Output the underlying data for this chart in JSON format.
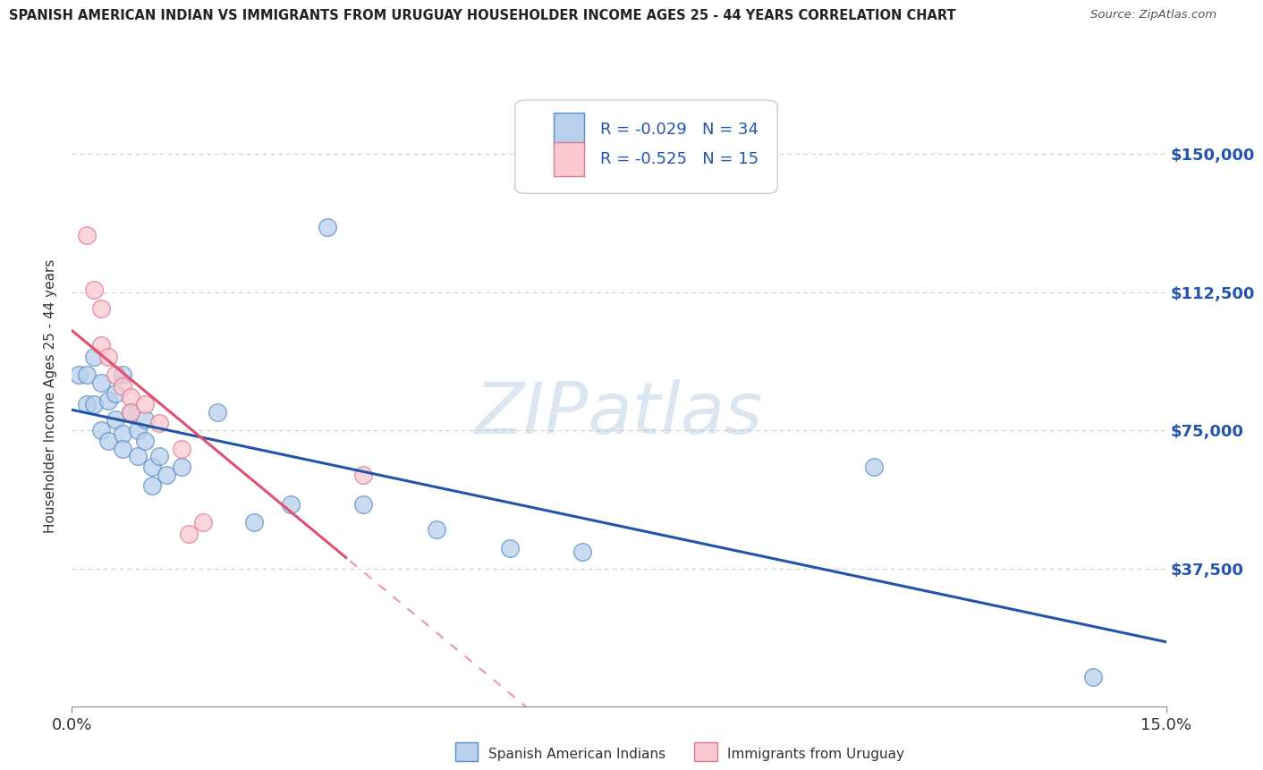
{
  "title": "SPANISH AMERICAN INDIAN VS IMMIGRANTS FROM URUGUAY HOUSEHOLDER INCOME AGES 25 - 44 YEARS CORRELATION CHART",
  "source": "Source: ZipAtlas.com",
  "ylabel": "Householder Income Ages 25 - 44 years",
  "xlim": [
    0.0,
    0.15
  ],
  "ylim": [
    0,
    168750
  ],
  "yticks": [
    0,
    37500,
    75000,
    112500,
    150000
  ],
  "ytick_labels": [
    "",
    "$37,500",
    "$75,000",
    "$112,500",
    "$150,000"
  ],
  "xtick_labels": [
    "0.0%",
    "15.0%"
  ],
  "bg_color": "#ffffff",
  "grid_color": "#cccccc",
  "blue_color": "#b8d0ec",
  "blue_edge_color": "#5b8ec4",
  "blue_line_color": "#2255aa",
  "pink_color": "#f9c8d0",
  "pink_edge_color": "#e07890",
  "pink_line_color": "#e05070",
  "watermark": "ZIPatlas",
  "legend_r_blue": "-0.029",
  "legend_n_blue": "34",
  "legend_r_pink": "-0.525",
  "legend_n_pink": "15",
  "blue_scatter": [
    [
      0.001,
      90000
    ],
    [
      0.002,
      90000
    ],
    [
      0.002,
      82000
    ],
    [
      0.003,
      95000
    ],
    [
      0.003,
      82000
    ],
    [
      0.004,
      88000
    ],
    [
      0.004,
      75000
    ],
    [
      0.005,
      83000
    ],
    [
      0.005,
      72000
    ],
    [
      0.006,
      78000
    ],
    [
      0.006,
      85000
    ],
    [
      0.007,
      90000
    ],
    [
      0.007,
      74000
    ],
    [
      0.007,
      70000
    ],
    [
      0.008,
      80000
    ],
    [
      0.009,
      75000
    ],
    [
      0.009,
      68000
    ],
    [
      0.01,
      78000
    ],
    [
      0.01,
      72000
    ],
    [
      0.011,
      65000
    ],
    [
      0.011,
      60000
    ],
    [
      0.012,
      68000
    ],
    [
      0.013,
      63000
    ],
    [
      0.015,
      65000
    ],
    [
      0.02,
      80000
    ],
    [
      0.025,
      50000
    ],
    [
      0.03,
      55000
    ],
    [
      0.035,
      130000
    ],
    [
      0.04,
      55000
    ],
    [
      0.05,
      48000
    ],
    [
      0.06,
      43000
    ],
    [
      0.07,
      42000
    ],
    [
      0.11,
      65000
    ],
    [
      0.14,
      8000
    ]
  ],
  "pink_scatter": [
    [
      0.002,
      128000
    ],
    [
      0.003,
      113000
    ],
    [
      0.004,
      108000
    ],
    [
      0.004,
      98000
    ],
    [
      0.005,
      95000
    ],
    [
      0.006,
      90000
    ],
    [
      0.007,
      87000
    ],
    [
      0.008,
      84000
    ],
    [
      0.008,
      80000
    ],
    [
      0.01,
      82000
    ],
    [
      0.012,
      77000
    ],
    [
      0.015,
      70000
    ],
    [
      0.018,
      50000
    ],
    [
      0.04,
      63000
    ],
    [
      0.016,
      47000
    ]
  ]
}
